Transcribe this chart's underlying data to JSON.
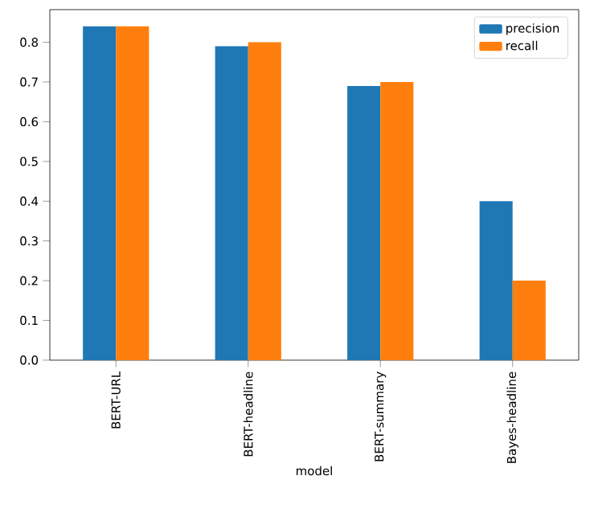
{
  "chart_data": {
    "type": "bar",
    "xlabel": "model",
    "categories": [
      "BERT-URL",
      "BERT-headline",
      "BERT-summary",
      "Bayes-headline"
    ],
    "series": [
      {
        "name": "precision",
        "color": "#1f77b4",
        "values": [
          0.84,
          0.79,
          0.69,
          0.4
        ]
      },
      {
        "name": "recall",
        "color": "#ff7f0e",
        "values": [
          0.84,
          0.8,
          0.7,
          0.2
        ]
      }
    ],
    "ylim": [
      0,
      0.882
    ],
    "yticks": [
      {
        "value": 0,
        "label": "0.0"
      },
      0.1,
      0.2,
      0.3,
      0.4,
      0.5,
      0.6,
      0.7,
      0.8
    ],
    "legend": "top right",
    "grid": false
  }
}
